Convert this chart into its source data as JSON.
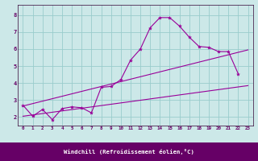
{
  "xlabel": "Windchill (Refroidissement éolien,°C)",
  "background_color": "#cce8e8",
  "grid_color": "#99cccc",
  "line_color": "#990099",
  "label_bar_color": "#660066",
  "xlim": [
    -0.5,
    23.5
  ],
  "ylim": [
    1.5,
    8.6
  ],
  "yticks": [
    2,
    3,
    4,
    5,
    6,
    7,
    8
  ],
  "xticks": [
    0,
    1,
    2,
    3,
    4,
    5,
    6,
    7,
    8,
    9,
    10,
    11,
    12,
    13,
    14,
    15,
    16,
    17,
    18,
    19,
    20,
    21,
    22,
    23
  ],
  "curve_x": [
    0,
    1,
    2,
    3,
    4,
    5,
    6,
    7,
    8,
    9,
    10,
    11,
    12,
    13,
    14,
    15,
    16,
    17,
    18,
    19,
    20,
    21,
    22
  ],
  "curve_y": [
    2.7,
    2.05,
    2.45,
    1.85,
    2.5,
    2.6,
    2.55,
    2.25,
    3.75,
    3.8,
    4.2,
    5.35,
    6.0,
    7.25,
    7.85,
    7.85,
    7.35,
    6.7,
    6.15,
    6.1,
    5.85,
    5.85,
    4.55
  ],
  "line1_x": [
    0,
    23
  ],
  "line1_y": [
    2.05,
    3.85
  ],
  "line2_x": [
    0,
    23
  ],
  "line2_y": [
    2.65,
    5.95
  ]
}
